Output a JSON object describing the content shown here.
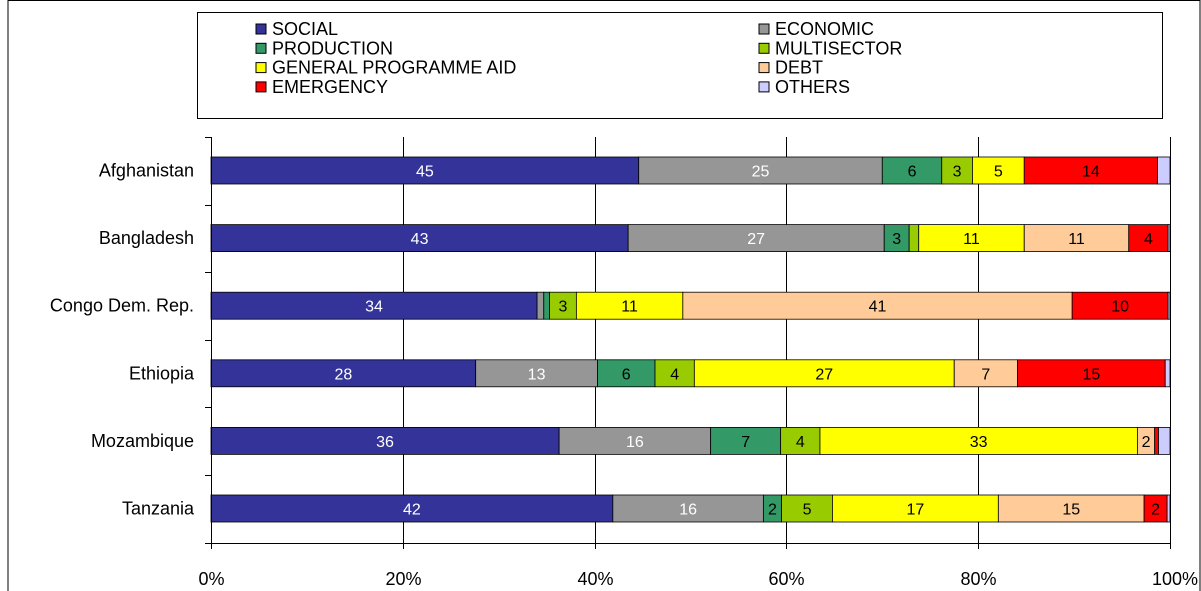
{
  "chart_data": {
    "type": "bar",
    "orientation": "horizontal",
    "stacked": "percent",
    "categories": [
      "Afghanistan",
      "Bangladesh",
      "Congo Dem. Rep.",
      "Ethiopia",
      "Mozambique",
      "Tanzania"
    ],
    "series": [
      {
        "name": "SOCIAL",
        "color": "#333399",
        "label_color": "#ffffff",
        "values": [
          44.6,
          43.5,
          34.0,
          27.6,
          36.3,
          41.9
        ],
        "labels": [
          "45",
          "43",
          "34",
          "28",
          "36",
          "42"
        ]
      },
      {
        "name": "ECONOMIC",
        "color": "#969696",
        "label_color": "#ffffff",
        "values": [
          25.4,
          26.7,
          0.7,
          12.7,
          15.8,
          15.7
        ],
        "labels": [
          "25",
          "27",
          "",
          "13",
          "16",
          "16"
        ]
      },
      {
        "name": "PRODUCTION",
        "color": "#339966",
        "label_color": "#000000",
        "values": [
          6.2,
          2.6,
          0.6,
          6.0,
          7.3,
          1.9
        ],
        "labels": [
          "6",
          "3",
          "",
          "6",
          "7",
          "2"
        ]
      },
      {
        "name": "MULTISECTOR",
        "color": "#99CC00",
        "label_color": "#000000",
        "values": [
          3.2,
          1.0,
          2.8,
          4.1,
          4.1,
          5.3
        ],
        "labels": [
          "3",
          "",
          "3",
          "4",
          "4",
          "5"
        ]
      },
      {
        "name": "GENERAL PROGRAMME AID",
        "color": "#FFFF00",
        "label_color": "#000000",
        "values": [
          5.4,
          11.0,
          11.1,
          27.1,
          33.1,
          17.3
        ],
        "labels": [
          "5",
          "11",
          "11",
          "27",
          "33",
          "17"
        ]
      },
      {
        "name": "DEBT",
        "color": "#FFCC99",
        "label_color": "#000000",
        "values": [
          0,
          10.9,
          40.6,
          6.6,
          1.8,
          15.2
        ],
        "labels": [
          "",
          "11",
          "41",
          "7",
          "2",
          "15"
        ]
      },
      {
        "name": "EMERGENCY",
        "color": "#FF0000",
        "label_color": "#000000",
        "values": [
          13.9,
          4.1,
          10.0,
          15.4,
          0.4,
          2.4
        ],
        "labels": [
          "14",
          "4",
          "10",
          "15",
          "",
          "2"
        ]
      },
      {
        "name": "OTHERS",
        "color": "#CCCCFF",
        "label_color": "#000000",
        "values": [
          1.3,
          0.2,
          0.2,
          0.5,
          1.2,
          0.3
        ],
        "labels": [
          "",
          "",
          "",
          "",
          "",
          ""
        ]
      }
    ],
    "xlim": [
      0,
      100
    ],
    "xticks": [
      "0%",
      "20%",
      "40%",
      "60%",
      "80%",
      "100%"
    ],
    "grid": true,
    "legend": "top"
  }
}
